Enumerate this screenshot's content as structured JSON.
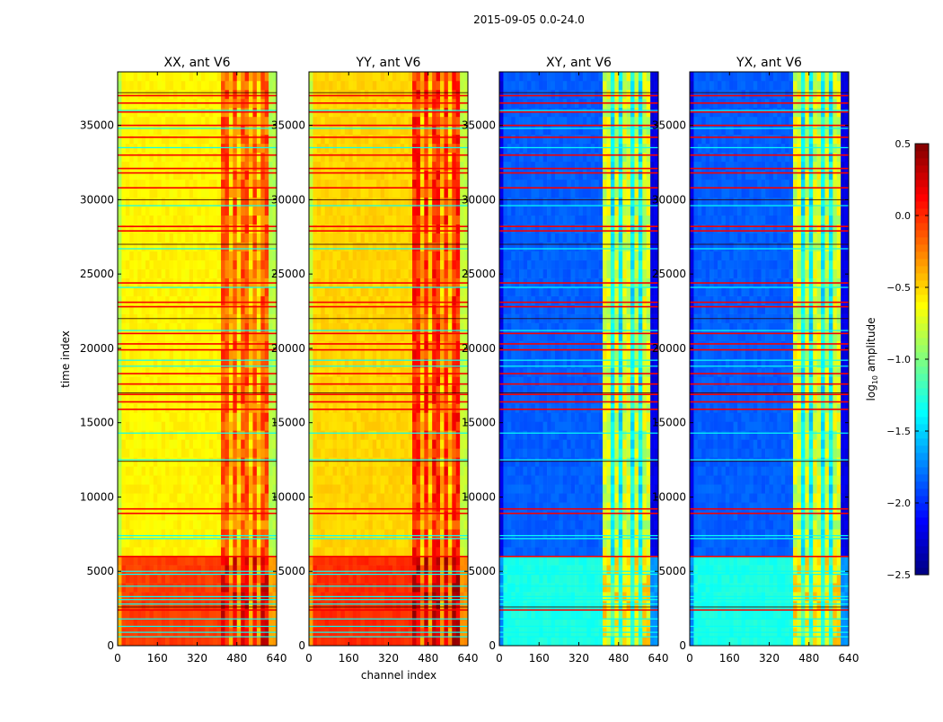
{
  "chart_data": {
    "type": "heatmap",
    "title": "2015-09-05 0.0-24.0",
    "xlabel": "channel index",
    "ylabel": "time index",
    "xlim": [
      0,
      640
    ],
    "ylim": [
      0,
      38600
    ],
    "xticks": [
      0,
      160,
      320,
      480,
      640
    ],
    "yticks": [
      0,
      5000,
      10000,
      15000,
      20000,
      25000,
      30000,
      35000
    ],
    "colorbar": {
      "label": "log10 amplitude",
      "label_main": "log",
      "label_sub": "10",
      "label_rest": " amplitude",
      "colormap": "jet",
      "range": [
        -2.5,
        0.5
      ],
      "ticks": [
        "0.5",
        "0.0",
        "−0.5",
        "−1.0",
        "−1.5",
        "−2.0",
        "−2.5"
      ],
      "tick_values": [
        0.5,
        0.0,
        -0.5,
        -1.0,
        -1.5,
        -2.0,
        -2.5
      ]
    },
    "hot_channel_range": [
      410,
      600
    ],
    "stripe_channels": [
      455,
      495,
      535,
      575
    ],
    "edge_channel_limits": [
      20,
      600
    ],
    "low_time_block": [
      0,
      6000
    ],
    "panels": [
      {
        "title": "XX, ant V6",
        "base": -0.6,
        "edge": -0.85,
        "hot": -0.15,
        "stripe": -0.5,
        "low_base": -0.05,
        "low_hot": 0.15
      },
      {
        "title": "YY, ant V6",
        "base": -0.5,
        "edge": -0.8,
        "hot": 0.0,
        "stripe": -0.45,
        "low_base": 0.0,
        "low_hot": 0.25
      },
      {
        "title": "XY, ant V6",
        "base": -1.85,
        "edge": -2.2,
        "hot": -0.75,
        "stripe": -1.4,
        "low_base": -1.3,
        "low_hot": -0.6
      },
      {
        "title": "YX, ant V6",
        "base": -1.85,
        "edge": -2.2,
        "hot": -0.75,
        "stripe": -1.4,
        "low_base": -1.3,
        "low_hot": -0.6
      }
    ],
    "flagged_rows_red": [
      37000,
      36500,
      35900,
      35000,
      34200,
      33000,
      32100,
      31800,
      30800,
      28200,
      27900,
      24400,
      23100,
      22800,
      21000,
      20300,
      19900,
      18300,
      17600,
      16900,
      16400,
      15900,
      9200,
      8900,
      6000,
      2400
    ],
    "flagged_rows_cyan": [
      36000,
      34800,
      33500,
      29600,
      26700,
      24100,
      21200,
      19200,
      18800,
      14300,
      12500,
      7400,
      7200,
      5000,
      4800,
      4000,
      3300,
      3100,
      2800,
      1800,
      1300,
      900,
      600
    ],
    "flagged_rows_dark": [
      37200,
      30000,
      27000,
      22000,
      17000,
      12400,
      2600
    ]
  }
}
